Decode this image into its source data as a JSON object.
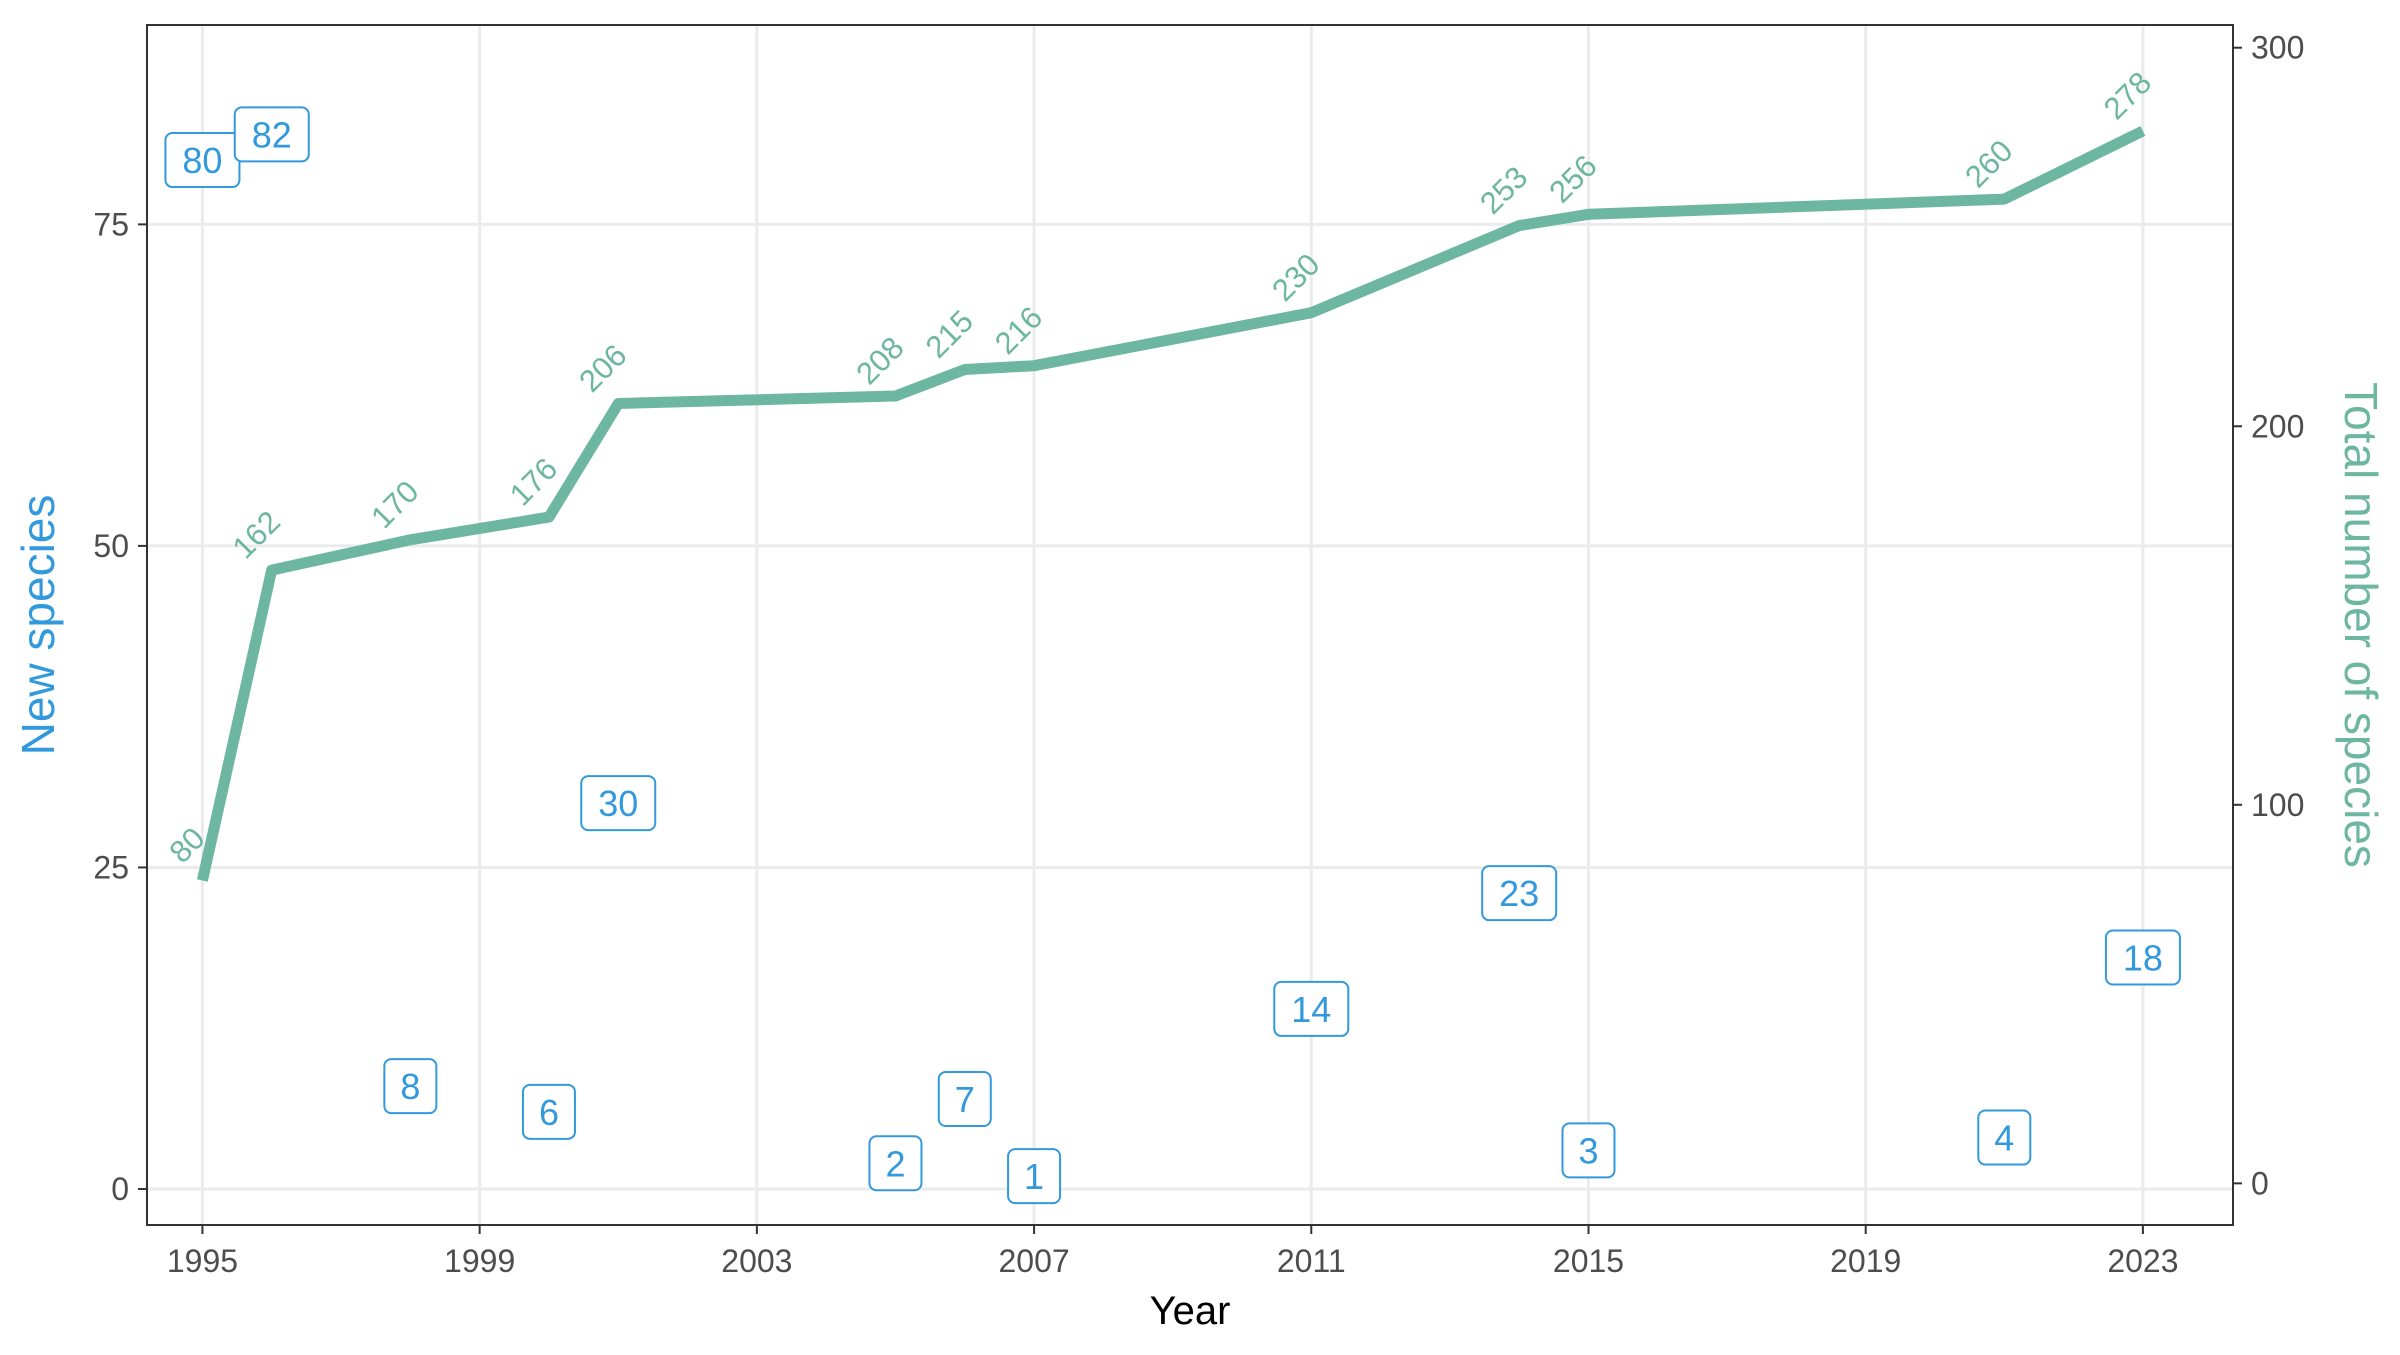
{
  "chart_data": {
    "type": "line",
    "title": "",
    "xlabel": "Year",
    "ylabel_left": "New species",
    "ylabel_right": "Total number of species",
    "xlim": [
      1994.2,
      2024.3
    ],
    "ylim_left": [
      -2.8,
      90.5
    ],
    "ylim_right": [
      -11,
      306
    ],
    "x_ticks": [
      1995,
      1999,
      2003,
      2007,
      2011,
      2015,
      2019,
      2023
    ],
    "y_ticks_left": [
      0,
      25,
      50,
      75
    ],
    "y_ticks_right": [
      0,
      100,
      200,
      300
    ],
    "grid": true,
    "colors": {
      "new_species": "#3399dd",
      "total_species": "#6db6a0",
      "grid": "#ebebeb",
      "axis": "#333333"
    },
    "series": [
      {
        "name": "New species",
        "axis": "left",
        "display": "label",
        "points": [
          {
            "x": 1995,
            "y": 80,
            "label": "80"
          },
          {
            "x": 1996,
            "y": 82,
            "label": "82"
          },
          {
            "x": 1998,
            "y": 8,
            "label": "8"
          },
          {
            "x": 2000,
            "y": 6,
            "label": "6"
          },
          {
            "x": 2001,
            "y": 30,
            "label": "30"
          },
          {
            "x": 2005,
            "y": 2,
            "label": "2"
          },
          {
            "x": 2006,
            "y": 7,
            "label": "7"
          },
          {
            "x": 2007,
            "y": 1,
            "label": "1"
          },
          {
            "x": 2011,
            "y": 14,
            "label": "14"
          },
          {
            "x": 2014,
            "y": 23,
            "label": "23"
          },
          {
            "x": 2015,
            "y": 3,
            "label": "3"
          },
          {
            "x": 2021,
            "y": 4,
            "label": "4"
          },
          {
            "x": 2023,
            "y": 18,
            "label": "18"
          }
        ]
      },
      {
        "name": "Total number of species",
        "axis": "right",
        "display": "line",
        "points": [
          {
            "x": 1995,
            "y": 80,
            "label": "80"
          },
          {
            "x": 1996,
            "y": 162,
            "label": "162"
          },
          {
            "x": 1998,
            "y": 170,
            "label": "170"
          },
          {
            "x": 2000,
            "y": 176,
            "label": "176"
          },
          {
            "x": 2001,
            "y": 206,
            "label": "206"
          },
          {
            "x": 2005,
            "y": 208,
            "label": "208"
          },
          {
            "x": 2006,
            "y": 215,
            "label": "215"
          },
          {
            "x": 2007,
            "y": 216,
            "label": "216"
          },
          {
            "x": 2011,
            "y": 230,
            "label": "230"
          },
          {
            "x": 2014,
            "y": 253,
            "label": "253"
          },
          {
            "x": 2015,
            "y": 256,
            "label": "256"
          },
          {
            "x": 2021,
            "y": 260,
            "label": "260"
          },
          {
            "x": 2023,
            "y": 278,
            "label": "278"
          }
        ]
      }
    ]
  }
}
